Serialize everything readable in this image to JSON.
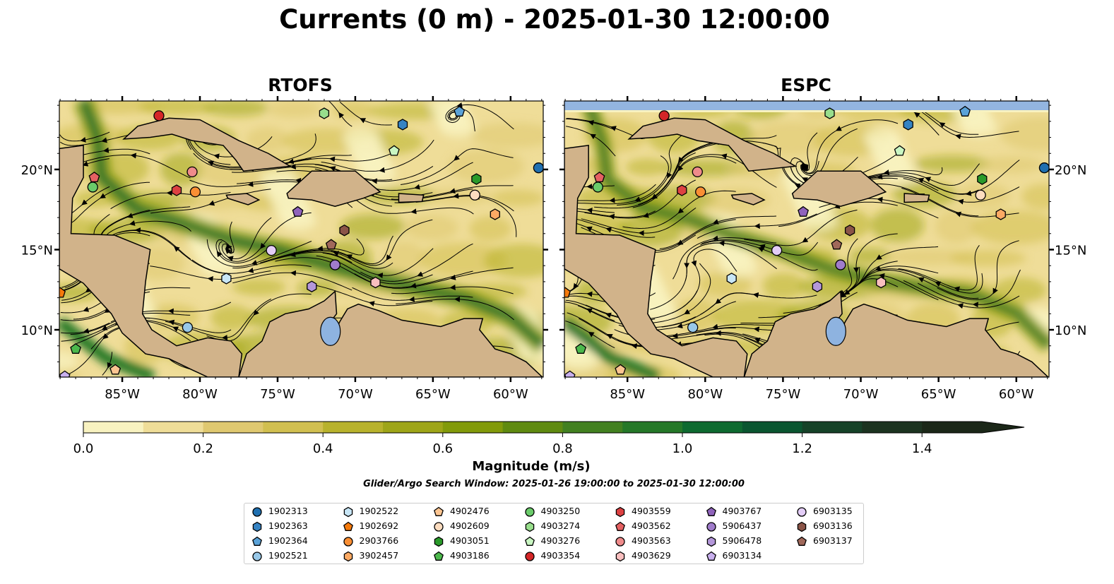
{
  "title": "Currents (0 m) - 2025-01-30 12:00:00",
  "panels": [
    {
      "title": "RTOFS",
      "lon_range": [
        -89.05,
        -57.9
      ],
      "lat_range": [
        7.05,
        24.27
      ]
    },
    {
      "title": "ESPC",
      "lon_range": [
        -89.05,
        -57.9
      ],
      "lat_range": [
        7.05,
        24.27
      ]
    }
  ],
  "lon_ticks": [
    "85°W",
    "80°W",
    "75°W",
    "70°W",
    "65°W",
    "60°W"
  ],
  "lon_tick_values": [
    -85,
    -80,
    -75,
    -70,
    -65,
    -60
  ],
  "lat_ticks": [
    "10°N",
    "15°N",
    "20°N"
  ],
  "lat_tick_values": [
    10,
    15,
    20
  ],
  "chart_data": {
    "type": "map",
    "colorbar": {
      "label": "Magnitude (m/s)",
      "range": [
        0,
        1.5
      ],
      "extend": "max",
      "tick_labels": [
        "0.0",
        "0.2",
        "0.4",
        "0.6",
        "0.8",
        "1.0",
        "1.2",
        "1.4"
      ],
      "colors": [
        "#f8f2c0",
        "#efdd98",
        "#dfc870",
        "#d1bf50",
        "#b8b22c",
        "#9ea518",
        "#829a0a",
        "#5f8a10",
        "#428020",
        "#257828",
        "#0e6a30",
        "#0a5530",
        "#164228",
        "#1c3320",
        "#1b2718"
      ]
    }
  },
  "search_window": "Glider/Argo Search Window: 2025-01-26 19:00:00 to 2025-01-30 12:00:00",
  "floats": [
    {
      "id": "1902313",
      "marker": "circle",
      "color": "#1f6fb0",
      "lon": -58.2,
      "lat": 20.1
    },
    {
      "id": "1902363",
      "marker": "hexagon",
      "color": "#3583c3",
      "lon": -66.95,
      "lat": 22.8
    },
    {
      "id": "1902364",
      "marker": "pentagon",
      "color": "#5aa2d8",
      "lon": -63.3,
      "lat": 23.6
    },
    {
      "id": "1902521",
      "marker": "circle",
      "color": "#98c8e8",
      "lon": -80.8,
      "lat": 10.15
    },
    {
      "id": "1902522",
      "marker": "hexagon",
      "color": "#c8e6f6",
      "lon": -78.3,
      "lat": 13.2
    },
    {
      "id": "1902692",
      "marker": "pentagon",
      "color": "#f57a0c",
      "lon": -89.0,
      "lat": 12.3
    },
    {
      "id": "2903766",
      "marker": "circle",
      "color": "#fa8f34",
      "lon": -80.3,
      "lat": 18.6
    },
    {
      "id": "3902457",
      "marker": "hexagon",
      "color": "#fcaa64",
      "lon": -61.0,
      "lat": 17.2
    },
    {
      "id": "4902476",
      "marker": "pentagon",
      "color": "#fcc591",
      "lon": -85.45,
      "lat": 7.5
    },
    {
      "id": "4902609",
      "marker": "circle",
      "color": "#fcdcbf",
      "lon": -62.3,
      "lat": 18.4
    },
    {
      "id": "4903051",
      "marker": "hexagon",
      "color": "#2a9a2a",
      "lon": -62.2,
      "lat": 19.4
    },
    {
      "id": "4903186",
      "marker": "pentagon",
      "color": "#4cb84c",
      "lon": -88.0,
      "lat": 8.8
    },
    {
      "id": "4903250",
      "marker": "circle",
      "color": "#6acb6a",
      "lon": -86.9,
      "lat": 18.9
    },
    {
      "id": "4903274",
      "marker": "hexagon",
      "color": "#98de8c",
      "lon": -72.0,
      "lat": 23.5
    },
    {
      "id": "4903276",
      "marker": "pentagon",
      "color": "#c9f6c2",
      "lon": -67.5,
      "lat": 21.15
    },
    {
      "id": "4903354",
      "marker": "circle",
      "color": "#d42627",
      "lon": -82.64,
      "lat": 23.35
    },
    {
      "id": "4903559",
      "marker": "hexagon",
      "color": "#dd4142",
      "lon": -81.5,
      "lat": 18.7
    },
    {
      "id": "4903562",
      "marker": "pentagon",
      "color": "#e56162",
      "lon": -86.8,
      "lat": 19.5
    },
    {
      "id": "4903563",
      "marker": "circle",
      "color": "#ef8b8b",
      "lon": -80.5,
      "lat": 19.85
    },
    {
      "id": "4903629",
      "marker": "hexagon",
      "color": "#f9bfbf",
      "lon": -68.7,
      "lat": 12.95
    },
    {
      "id": "4903767",
      "marker": "pentagon",
      "color": "#8f63bb",
      "lon": -73.7,
      "lat": 17.35
    },
    {
      "id": "5906437",
      "marker": "circle",
      "color": "#a07ccb",
      "lon": -71.3,
      "lat": 14.05
    },
    {
      "id": "5906478",
      "marker": "hexagon",
      "color": "#b497da",
      "lon": -72.8,
      "lat": 12.7
    },
    {
      "id": "6903134",
      "marker": "pentagon",
      "color": "#c9b0ee",
      "lon": -88.7,
      "lat": 7.1
    },
    {
      "id": "6903135",
      "marker": "circle",
      "color": "#e3cdf7",
      "lon": -75.4,
      "lat": 14.95
    },
    {
      "id": "6903136",
      "marker": "hexagon",
      "color": "#8a5447",
      "lon": -70.7,
      "lat": 16.2
    },
    {
      "id": "6903137",
      "marker": "pentagon",
      "color": "#a0685a",
      "lon": -71.55,
      "lat": 15.3
    }
  ]
}
